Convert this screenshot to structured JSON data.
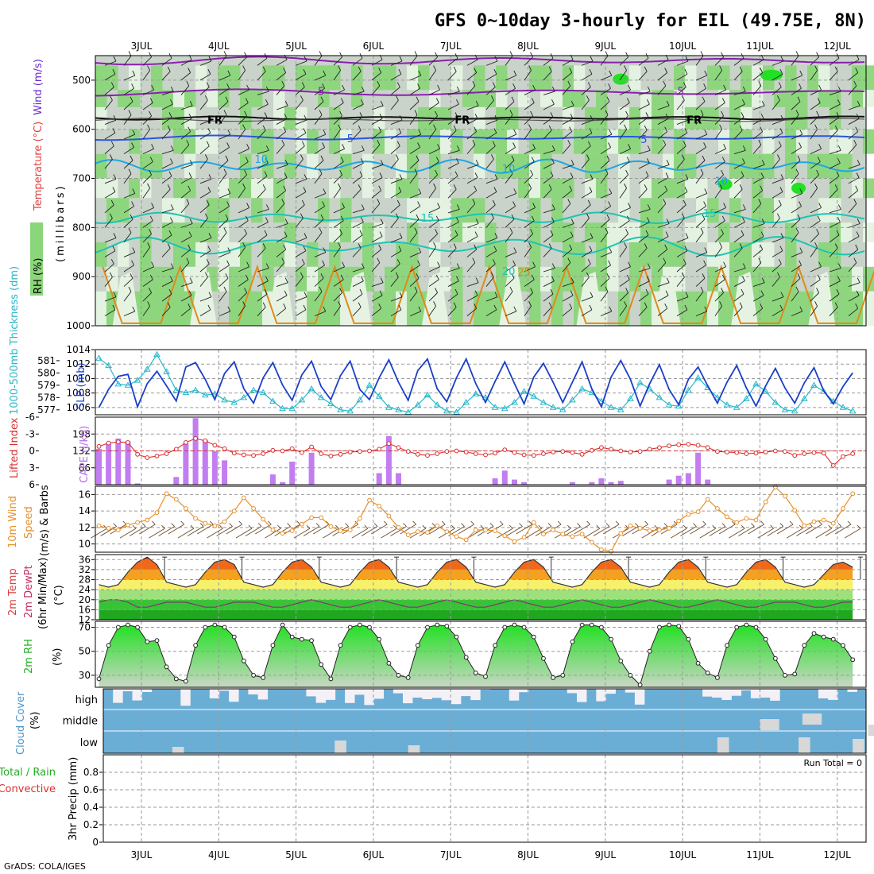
{
  "header": {
    "title": "GFS 0~10day 3-hourly for EIL (49.75E, 8N)",
    "credit": "GrADS: COLA/IGES"
  },
  "colors": {
    "rh_green": "#8bd67a",
    "rh_light": "#e6f3e3",
    "rh_gray": "#c9d3c9",
    "temp_purple": "#8a1fb0",
    "temp_blue": "#2a55e0",
    "temp_cyan": "#1ea6e6",
    "temp_teal": "#1ec4b2",
    "temp_orange": "#e08a1a",
    "slp_blue": "#1a3fc8",
    "thickness_cyan": "#27b7c9",
    "cape_purple": "#c27df0",
    "li_red": "#d93030",
    "wind_orange": "#e8902a",
    "cloud_blue": "#6aaed6",
    "cloud_gray": "#d8d8d8",
    "rh2m_green": "#23e023"
  },
  "chart_data": [
    {
      "panel": "upper_air",
      "type": "heatmap",
      "ylabel_parts": [
        "RH (%)",
        "Temperature (°C)",
        "Wind (m/s)"
      ],
      "yunit": "(millibars)",
      "yticks": [
        500,
        600,
        700,
        800,
        900,
        1000
      ],
      "ylim": [
        1000,
        450
      ],
      "x_labels": [
        "3JUL",
        "4JUL",
        "5JUL",
        "6JUL",
        "7JUL",
        "8JUL",
        "9JUL",
        "10JUL",
        "11JUL",
        "12JUL"
      ],
      "isotherm_labels": [
        {
          "text": "-5",
          "day": 2.3,
          "p": 522
        },
        {
          "text": "-5",
          "day": 6.95,
          "p": 522
        },
        {
          "text": "FR",
          "day": 0.95,
          "p": 580
        },
        {
          "text": "FR",
          "day": 4.15,
          "p": 580
        },
        {
          "text": "FR",
          "day": 7.15,
          "p": 580
        },
        {
          "text": "5",
          "day": 2.7,
          "p": 618
        },
        {
          "text": "5",
          "day": 6.5,
          "p": 620
        },
        {
          "text": "10",
          "day": 1.55,
          "p": 660
        },
        {
          "text": "10",
          "day": 4.75,
          "p": 680
        },
        {
          "text": "10",
          "day": 7.5,
          "p": 705
        },
        {
          "text": "15",
          "day": 3.7,
          "p": 780
        },
        {
          "text": "15",
          "day": 7.35,
          "p": 770
        },
        {
          "text": "20",
          "day": 4.75,
          "p": 888
        },
        {
          "text": "25",
          "day": 4.95,
          "p": 890
        }
      ]
    },
    {
      "panel": "slp_thickness",
      "type": "line",
      "series": [
        {
          "name": "SLP (mb)",
          "axis": "right",
          "values": [
            1006.0,
            1008.5,
            1010.3,
            1010.6,
            1006.1,
            1009.3,
            1011.0,
            1009.0,
            1006.9,
            1011.6,
            1012.2,
            1009.9,
            1007.1,
            1010.7,
            1012.3,
            1008.6,
            1006.6,
            1010.1,
            1012.2,
            1009.1,
            1007.0,
            1010.5,
            1012.4,
            1008.9,
            1007.1,
            1010.4,
            1012.4,
            1008.5,
            1007.1,
            1010.1,
            1012.6,
            1009.5,
            1007.0,
            1011.1,
            1012.7,
            1008.6,
            1006.8,
            1010.1,
            1012.7,
            1009.3,
            1006.7,
            1009.6,
            1012.3,
            1009.3,
            1006.5,
            1010.2,
            1012.1,
            1009.5,
            1006.7,
            1009.5,
            1012.3,
            1008.6,
            1006.1,
            1010.2,
            1012.5,
            1009.9,
            1006.2,
            1009.3,
            1011.9,
            1008.5,
            1006.4,
            1009.9,
            1011.6,
            1009.0,
            1006.6,
            1009.5,
            1011.8,
            1008.7,
            1006.2,
            1009.0,
            1011.4,
            1008.7,
            1006.6,
            1009.4,
            1011.5,
            1008.3,
            1006.5,
            1008.9,
            1010.8
          ],
          "ylim": [
            1005,
            1014
          ],
          "yticks": [
            1006,
            1008,
            1010,
            1012,
            1014
          ]
        },
        {
          "name": "1000-500mb Thickness (dm)",
          "axis": "left",
          "values": [
            581.2,
            580.6,
            579.1,
            579.0,
            579.4,
            580.3,
            581.5,
            580.1,
            578.6,
            578.4,
            578.6,
            578.2,
            578.3,
            577.8,
            577.6,
            578.0,
            578.6,
            578.4,
            577.7,
            577.1,
            577.1,
            577.8,
            578.7,
            578.0,
            577.5,
            577.0,
            576.9,
            577.8,
            579.0,
            578.1,
            577.2,
            577.0,
            576.8,
            577.4,
            578.2,
            577.4,
            576.9,
            576.8,
            577.6,
            578.3,
            578.0,
            577.2,
            577.1,
            577.6,
            578.5,
            578.1,
            577.6,
            577.2,
            577.0,
            577.8,
            578.7,
            578.4,
            577.7,
            577.2,
            577.0,
            577.9,
            579.2,
            578.7,
            578.0,
            577.4,
            577.3,
            578.6,
            579.6,
            578.8,
            578.0,
            577.4,
            577.2,
            577.9,
            579.1,
            578.5,
            577.6,
            577.0,
            576.9,
            577.9,
            579.0,
            578.5,
            577.7,
            577.2,
            576.9
          ],
          "ylim": [
            576.6,
            581.9
          ],
          "yticks": [
            577,
            578,
            579,
            580,
            581
          ]
        }
      ],
      "x_step_hours": 3,
      "labels": {
        "left": "1000-500mb Thickness (dm)",
        "right": "SLP (mb)"
      }
    },
    {
      "panel": "stability",
      "type": "bar",
      "series": [
        {
          "name": "CAPE (J/kg)",
          "axis": "left",
          "kind": "bar",
          "values": [
            140,
            160,
            180,
            170,
            5,
            0,
            0,
            0,
            30,
            160,
            260,
            175,
            130,
            95,
            0,
            0,
            0,
            0,
            40,
            10,
            90,
            0,
            125,
            0,
            0,
            0,
            0,
            0,
            0,
            45,
            190,
            45,
            0,
            0,
            0,
            0,
            0,
            0,
            0,
            0,
            0,
            25,
            55,
            20,
            10,
            0,
            0,
            0,
            0,
            10,
            0,
            10,
            25,
            10,
            15,
            0,
            0,
            0,
            0,
            20,
            35,
            45,
            125,
            20,
            0,
            0,
            0,
            0,
            0,
            0,
            0,
            0,
            0,
            0,
            0,
            0,
            0,
            0,
            0
          ],
          "ylim": [
            0,
            264
          ],
          "yticks": [
            66,
            132,
            198
          ]
        },
        {
          "name": "Lifted Index",
          "axis": "right",
          "kind": "line",
          "values": [
            -0.8,
            -1.4,
            -1.6,
            -1.5,
            0.6,
            1.2,
            0.9,
            0.5,
            -0.3,
            -1.5,
            -2.2,
            -1.8,
            -1.0,
            -0.4,
            0.4,
            0.7,
            0.8,
            0.5,
            -0.1,
            0.0,
            -0.4,
            0.3,
            -0.7,
            0.5,
            0.9,
            0.6,
            0.2,
            0.1,
            0.0,
            -0.3,
            -1.3,
            -0.6,
            0.1,
            0.6,
            0.8,
            0.5,
            0.1,
            0.0,
            0.2,
            0.5,
            0.7,
            0.4,
            -0.2,
            0.3,
            0.7,
            0.8,
            0.5,
            0.2,
            0.1,
            0.3,
            0.6,
            -0.1,
            -0.6,
            -0.3,
            0.0,
            0.2,
            0.1,
            -0.3,
            -0.6,
            -0.9,
            -1.1,
            -1.2,
            -1.0,
            -0.6,
            0.1,
            0.2,
            0.3,
            0.5,
            0.4,
            0.2,
            0.0,
            0.1,
            0.8,
            0.5,
            0.3,
            0.4,
            2.6,
            1.0,
            0.5
          ],
          "ylim": [
            6,
            -6
          ],
          "yticks": [
            -6,
            -3,
            0,
            3,
            6
          ],
          "ref": 0
        }
      ],
      "labels": {
        "left": "CAPE (J/kg)",
        "right": "Lifted Index"
      }
    },
    {
      "panel": "wind10m",
      "type": "line",
      "series": [
        {
          "name": "10m Wind Speed",
          "values": [
            12.2,
            11.9,
            11.7,
            12.3,
            12.6,
            12.9,
            13.8,
            16.1,
            15.4,
            14.3,
            13.1,
            12.5,
            12.2,
            12.7,
            14.0,
            15.6,
            14.3,
            13.0,
            11.7,
            11.3,
            11.6,
            12.4,
            13.2,
            13.2,
            12.1,
            11.6,
            11.7,
            13.1,
            15.3,
            14.6,
            13.4,
            12.0,
            11.1,
            11.5,
            11.4,
            12.2,
            11.5,
            10.9,
            10.5,
            11.7,
            11.7,
            11.6,
            11.0,
            10.3,
            10.8,
            12.6,
            11.2,
            11.7,
            11.2,
            10.9,
            11.2,
            10.2,
            9.3,
            9.1,
            11.3,
            12.2,
            11.9,
            11.6,
            11.7,
            11.9,
            12.8,
            13.6,
            13.9,
            15.4,
            14.3,
            13.3,
            12.6,
            13.1,
            12.9,
            15.1,
            16.9,
            15.8,
            14.1,
            12.2,
            12.7,
            12.9,
            12.5,
            14.3,
            16.1
          ]
        }
      ],
      "ylim": [
        9,
        17
      ],
      "yticks": [
        10,
        12,
        14,
        16
      ],
      "labels": {
        "left_1": "10m Wind",
        "left_2": "Speed",
        "left_3": "(m/s) & Barbs"
      }
    },
    {
      "panel": "temp2m",
      "type": "area",
      "series": [
        {
          "name": "2m Temp",
          "values": [
            26,
            25,
            26,
            31,
            35,
            37,
            34,
            27,
            26,
            25,
            26,
            31,
            35,
            36,
            34,
            27,
            26,
            25,
            26,
            31,
            35,
            36,
            33,
            27,
            26,
            25,
            26,
            31,
            35,
            36,
            33,
            27,
            26,
            25,
            26,
            31,
            35,
            36,
            33,
            27,
            26,
            25,
            26,
            31,
            35,
            36,
            33,
            27,
            26,
            25,
            26,
            31,
            35,
            36,
            33,
            27,
            26,
            25,
            26,
            31,
            35,
            36,
            33,
            27,
            26,
            25,
            26,
            31,
            35,
            36,
            33,
            27,
            26,
            25,
            26,
            30,
            34,
            35,
            33
          ]
        },
        {
          "name": "2m DewPt",
          "values": [
            19,
            20,
            20,
            19,
            17,
            17,
            18,
            19,
            19,
            19,
            18,
            17,
            17,
            18,
            19,
            19,
            19,
            18,
            17,
            17,
            18,
            19,
            20,
            19,
            18,
            17,
            17,
            18,
            19,
            20,
            19,
            18,
            17,
            17,
            18,
            19,
            20,
            19,
            18,
            17,
            17,
            18,
            19,
            20,
            19,
            18,
            17,
            17,
            18,
            19,
            20,
            19,
            18,
            17,
            17,
            18,
            19,
            20,
            19,
            18,
            17,
            17,
            18,
            19,
            20,
            19,
            18,
            17,
            17,
            18,
            19,
            19,
            19,
            18,
            17,
            17,
            18,
            19,
            19
          ]
        }
      ],
      "ylim": [
        12,
        38
      ],
      "yticks": [
        12,
        16,
        20,
        24,
        28,
        32,
        36
      ],
      "labels": {
        "left_1": "2m Temp",
        "left_2": "2m DewPt",
        "left_3": "(6hr Min/Max)",
        "left_4": "(°C)"
      }
    },
    {
      "panel": "rh2m",
      "type": "area",
      "series": [
        {
          "name": "2m RH",
          "values": [
            27,
            55,
            70,
            72,
            70,
            58,
            59,
            37,
            27,
            25,
            55,
            70,
            72,
            70,
            62,
            42,
            30,
            28,
            55,
            72,
            62,
            60,
            59,
            39,
            27,
            55,
            70,
            72,
            70,
            60,
            40,
            30,
            28,
            55,
            70,
            72,
            71,
            62,
            45,
            32,
            29,
            55,
            70,
            72,
            70,
            62,
            44,
            28,
            30,
            58,
            72,
            72,
            70,
            60,
            42,
            30,
            22,
            50,
            70,
            72,
            71,
            60,
            40,
            32,
            28,
            55,
            70,
            72,
            70,
            60,
            44,
            30,
            31,
            55,
            65,
            62,
            60,
            55,
            43
          ]
        }
      ],
      "ylim": [
        20,
        75
      ],
      "yticks": [
        30,
        50,
        70
      ],
      "labels": {
        "left": "2m RH",
        "unit": "(%)"
      }
    },
    {
      "panel": "cloud",
      "type": "heatmap",
      "rows": [
        "high",
        "middle",
        "low"
      ],
      "labels": {
        "left": "Cloud Cover",
        "unit": "(%)"
      }
    },
    {
      "panel": "precip",
      "type": "bar",
      "values": [],
      "ylim": [
        0,
        1.0
      ],
      "yticks": [
        0,
        0.2,
        0.4,
        0.6,
        0.8
      ],
      "run_total": "Run Total = 0",
      "labels": {
        "l1": "Total / Rain",
        "l2": "Convective",
        "l3": "3hr Precip (mm)"
      }
    }
  ]
}
